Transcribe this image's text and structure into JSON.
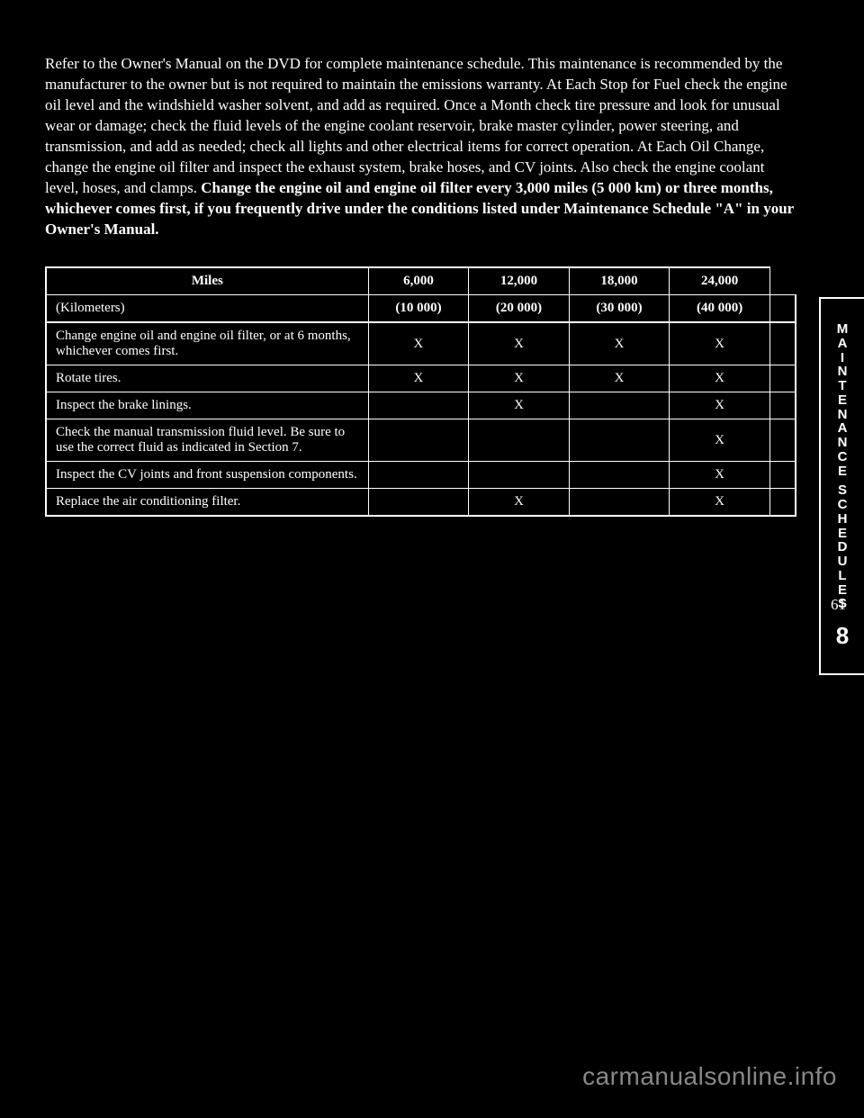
{
  "side_tab": {
    "word1": "MAINTENANCE",
    "word2": "SCHEDULES",
    "section": "8"
  },
  "intro": {
    "p1_prefix": "Refer to the Owner's Manual on the DVD for complete maintenance schedule. This maintenance is recommended by the manufacturer to the owner but is not required to maintain the emissions warranty. At Each Stop for Fuel check the engine oil level and the windshield washer solvent, and add as required. Once a Month check tire pressure and look for unusual wear or damage; check the fluid levels of the engine coolant reservoir, brake master cylinder, power steering, and transmission, and add as needed; check all lights and other electrical items for correct operation. At Each Oil Change, change the engine oil filter and inspect the exhaust system, brake hoses, and CV joints. Also check the engine coolant level, hoses, and clamps. ",
    "p1_bold": "Change the engine oil and engine oil filter every 3,000 miles (5 000 km) or three months, whichever comes first, if you frequently drive under the conditions listed under Maintenance Schedule \"A\" in your Owner's Manual."
  },
  "table": {
    "header_cells": [
      "Miles",
      "6,000",
      "12,000",
      "18,000",
      "24,000",
      ""
    ],
    "sub_cells": [
      "(Kilometers)",
      "(10 000)",
      "(20 000)",
      "(30 000)",
      "(40 000)",
      ""
    ],
    "rows": [
      {
        "desc": "Change engine oil and engine oil filter, or at 6 months, whichever comes first.",
        "c": [
          "X",
          "X",
          "X",
          "X",
          ""
        ]
      },
      {
        "desc": "Rotate tires.",
        "c": [
          "X",
          "X",
          "X",
          "X",
          ""
        ]
      },
      {
        "desc": "Inspect the brake linings.",
        "c": [
          "",
          "X",
          "",
          "X",
          ""
        ]
      },
      {
        "desc": "Check the manual transmission fluid level. Be sure to use the correct fluid as indicated in Section 7.",
        "c": [
          "",
          "",
          "",
          "X",
          ""
        ]
      },
      {
        "desc": "Inspect the CV joints and front suspension components.",
        "c": [
          "",
          "",
          "",
          "X",
          ""
        ]
      },
      {
        "desc": "Replace the air conditioning filter.",
        "c": [
          "",
          "X",
          "",
          "X",
          ""
        ]
      }
    ]
  },
  "page_number": "61",
  "watermark": "carmanualsonline.info"
}
